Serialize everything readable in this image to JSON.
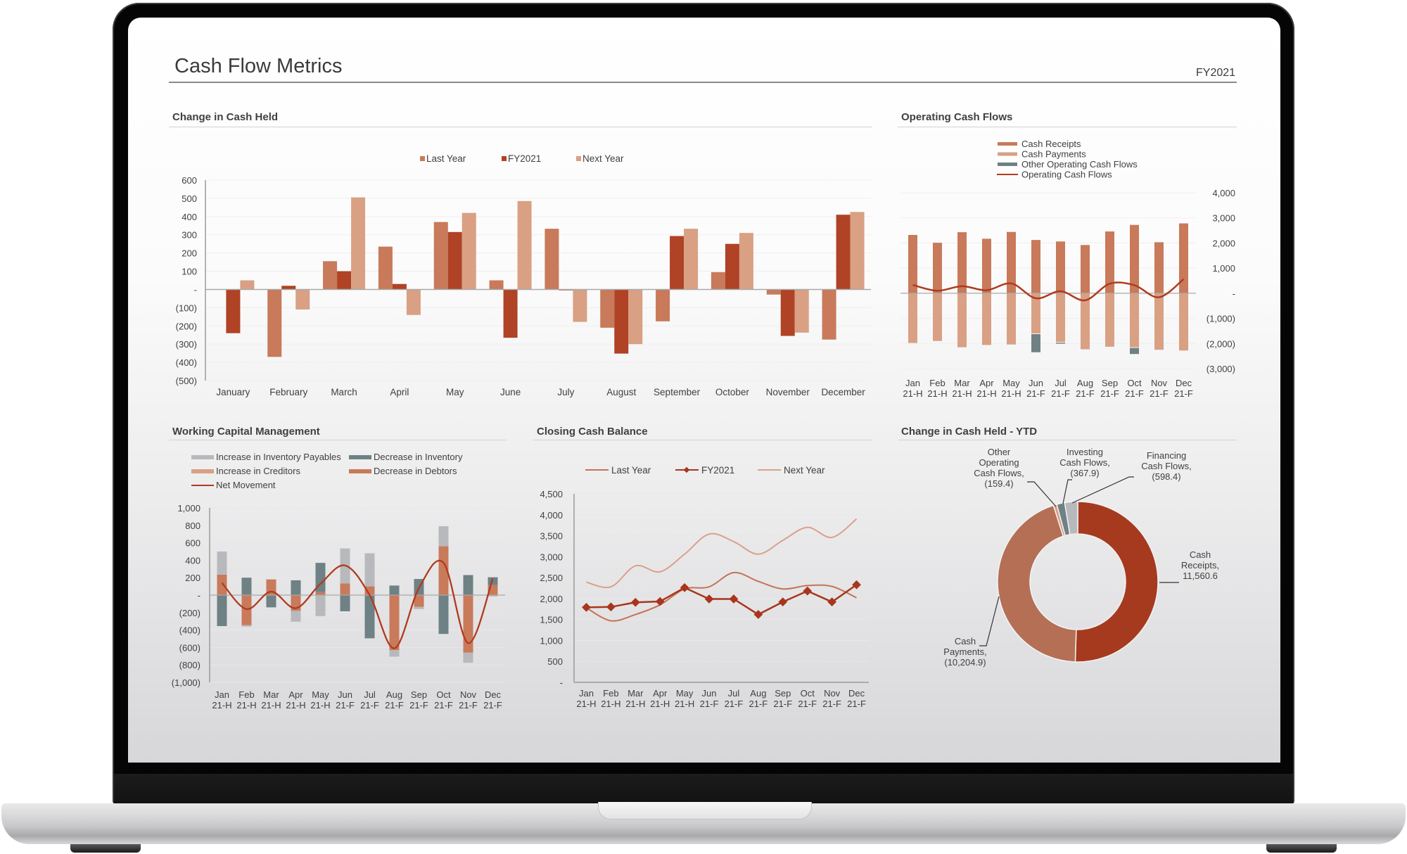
{
  "header": {
    "title": "Cash Flow Metrics",
    "period": "FY2021"
  },
  "colors": {
    "last_year": "#c87a5a",
    "fy2021": "#b04225",
    "next_year": "#d9a084",
    "slate": "#6e8185",
    "light_gray": "#b8b9bc",
    "receipts": "#c87a5a",
    "payments": "#d9a084",
    "donut_receipts": "#a53a1f",
    "donut_payments": "#b46f55"
  },
  "panels": {
    "change_in_cash": {
      "title": "Change in Cash Held"
    },
    "operating": {
      "title": "Operating Cash Flows"
    },
    "working_capital": {
      "title": "Working Capital Management"
    },
    "closing_balance": {
      "title": "Closing Cash Balance"
    },
    "ytd": {
      "title": "Change in Cash Held - YTD"
    }
  },
  "chart_data": [
    {
      "id": "change_in_cash",
      "type": "bar",
      "title": "Change in Cash Held",
      "categories": [
        "January",
        "February",
        "March",
        "April",
        "May",
        "June",
        "July",
        "August",
        "September",
        "October",
        "November",
        "December"
      ],
      "series": [
        {
          "name": "Last Year",
          "values": [
            0,
            -370,
            155,
            235,
            370,
            50,
            333,
            -210,
            -175,
            95,
            -28,
            -275
          ]
        },
        {
          "name": "FY2021",
          "values": [
            -240,
            20,
            100,
            30,
            315,
            -265,
            -5,
            -352,
            293,
            250,
            -255,
            410
          ]
        },
        {
          "name": "Next Year",
          "values": [
            50,
            -110,
            505,
            -140,
            420,
            485,
            -178,
            -300,
            333,
            310,
            -237,
            425
          ]
        }
      ],
      "yticks": [
        "600",
        "500",
        "400",
        "300",
        "200",
        "100",
        "-",
        "(100)",
        "(200)",
        "(300)",
        "(400)",
        "(500)"
      ],
      "ylim": [
        -500,
        600
      ],
      "legend_position": "top",
      "grid": true
    },
    {
      "id": "operating",
      "type": "bar",
      "stacked": true,
      "title": "Operating Cash Flows",
      "categories": [
        "Jan 21-H",
        "Feb 21-H",
        "Mar 21-H",
        "Apr 21-H",
        "May 21-H",
        "Jun 21-F",
        "Jul 21-F",
        "Aug 21-F",
        "Sep 21-F",
        "Oct 21-F",
        "Nov 21-F",
        "Dec 21-F"
      ],
      "series": [
        {
          "name": "Cash Receipts",
          "kind": "bar",
          "values": [
            2320,
            2010,
            2430,
            2170,
            2440,
            2120,
            2060,
            1920,
            2460,
            2720,
            2030,
            2780
          ]
        },
        {
          "name": "Cash Payments",
          "kind": "bar",
          "values": [
            -1980,
            -1900,
            -2150,
            -2060,
            -2040,
            -1600,
            -1940,
            -2230,
            -2130,
            -2150,
            -2250,
            -2280
          ]
        },
        {
          "name": "Other Operating Cash Flows",
          "kind": "bar",
          "values": [
            0,
            0,
            0,
            0,
            0,
            -720,
            -40,
            0,
            0,
            -240,
            0,
            0
          ]
        },
        {
          "name": "Operating Cash Flows",
          "kind": "line",
          "values": [
            330,
            100,
            280,
            120,
            390,
            -200,
            80,
            -280,
            380,
            320,
            -160,
            560
          ]
        }
      ],
      "yticks": [
        "4,000",
        "3,000",
        "2,000",
        "1,000",
        "-",
        "(1,000)",
        "(2,000)",
        "(3,000)"
      ],
      "ylim": [
        -3000,
        4000
      ],
      "axis_side": "right",
      "legend_position": "top"
    },
    {
      "id": "working_capital",
      "type": "bar",
      "stacked": true,
      "title": "Working Capital Management",
      "categories": [
        "Jan 21-H",
        "Feb 21-H",
        "Mar 21-H",
        "Apr 21-H",
        "May 21-H",
        "Jun 21-F",
        "Jul 21-F",
        "Aug 21-F",
        "Sep 21-F",
        "Oct 21-F",
        "Nov 21-F",
        "Dec 21-F"
      ],
      "series": [
        {
          "name": "Increase in Inventory Payables",
          "kind": "bar",
          "values": [
            265,
            -15,
            0,
            -125,
            -240,
            400,
            380,
            -75,
            -25,
            230,
            -115,
            -15
          ]
        },
        {
          "name": "Decrease in Inventory",
          "kind": "bar",
          "values": [
            -355,
            200,
            -140,
            170,
            335,
            -185,
            -495,
            110,
            185,
            -445,
            230,
            90
          ]
        },
        {
          "name": "Increase in Creditors",
          "kind": "bar",
          "values": [
            0,
            0,
            0,
            0,
            0,
            0,
            0,
            0,
            0,
            0,
            0,
            0
          ]
        },
        {
          "name": "Decrease in Debtors",
          "kind": "bar",
          "values": [
            235,
            -345,
            180,
            -180,
            35,
            135,
            100,
            -630,
            -135,
            560,
            -660,
            115
          ]
        },
        {
          "name": "Net Movement",
          "kind": "line",
          "values": [
            140,
            -160,
            40,
            -150,
            130,
            340,
            0,
            -610,
            80,
            370,
            -550,
            190
          ]
        }
      ],
      "yticks": [
        "1,000",
        "800",
        "600",
        "400",
        "200",
        "-",
        "(200)",
        "(400)",
        "(600)",
        "(800)",
        "(1,000)"
      ],
      "ylim": [
        -1000,
        1000
      ],
      "legend_position": "top"
    },
    {
      "id": "closing_balance",
      "type": "line",
      "title": "Closing Cash Balance",
      "categories": [
        "Jan 21-H",
        "Feb 21-H",
        "Mar 21-H",
        "Apr 21-H",
        "May 21-H",
        "Jun 21-F",
        "Jul 21-F",
        "Aug 21-F",
        "Sep 21-F",
        "Oct 21-F",
        "Nov 21-F",
        "Dec 21-F"
      ],
      "series": [
        {
          "name": "Last Year",
          "values": [
            1780,
            1470,
            1620,
            1850,
            2230,
            2280,
            2620,
            2410,
            2230,
            2310,
            2290,
            2020
          ]
        },
        {
          "name": "FY2021",
          "values": [
            1790,
            1800,
            1910,
            1930,
            2260,
            1990,
            1990,
            1620,
            1920,
            2180,
            1920,
            2330
          ],
          "markers": "diamond"
        },
        {
          "name": "Next Year",
          "values": [
            2390,
            2280,
            2780,
            2640,
            3060,
            3540,
            3360,
            3060,
            3390,
            3700,
            3460,
            3900
          ]
        }
      ],
      "yticks": [
        "4,500",
        "4,000",
        "3,500",
        "3,000",
        "2,500",
        "2,000",
        "1,500",
        "1,000",
        "500",
        "-"
      ],
      "ylim": [
        0,
        4500
      ],
      "legend_position": "top"
    },
    {
      "id": "ytd",
      "type": "pie",
      "donut": true,
      "title": "Change in Cash Held - YTD",
      "slices": [
        {
          "name": "Cash Receipts",
          "value": 11560.6,
          "label": [
            "Cash",
            "Receipts,",
            "11,560.6"
          ]
        },
        {
          "name": "Cash Payments",
          "value": -10204.9,
          "label": [
            "Cash",
            "Payments,",
            "(10,204.9)"
          ]
        },
        {
          "name": "Other Operating Cash Flows",
          "value": -159.4,
          "label": [
            "Other",
            "Operating",
            "Cash Flows,",
            "(159.4)"
          ]
        },
        {
          "name": "Investing Cash Flows",
          "value": -367.9,
          "label": [
            "Investing",
            "Cash Flows,",
            "(367.9)"
          ]
        },
        {
          "name": "Financing Cash Flows",
          "value": -598.4,
          "label": [
            "Financing",
            "Cash Flows,",
            "(598.4)"
          ]
        }
      ]
    }
  ]
}
